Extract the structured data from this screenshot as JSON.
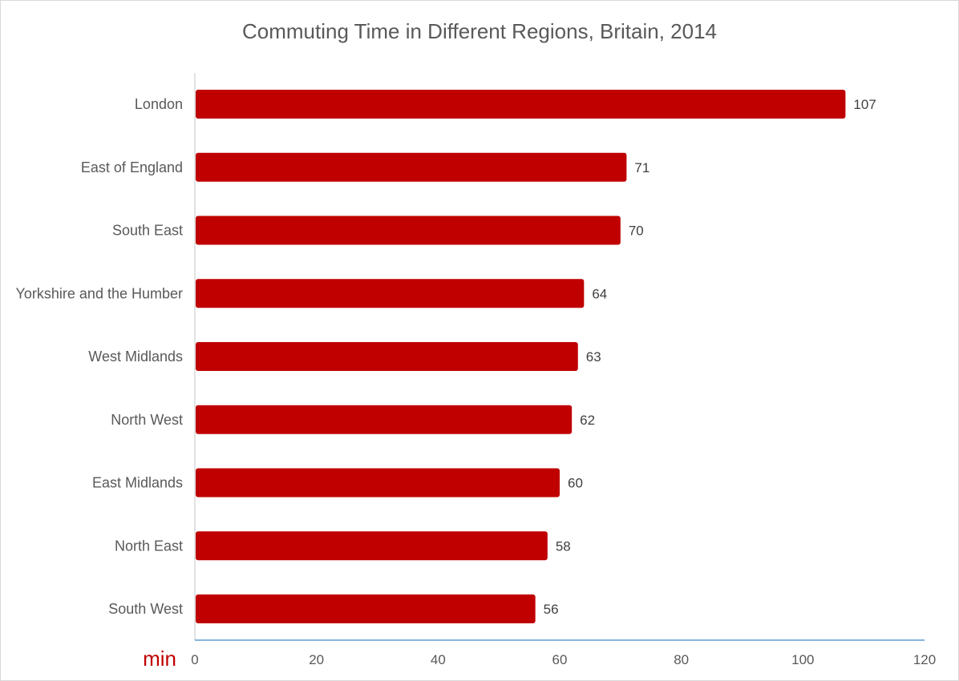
{
  "chart_data": {
    "type": "bar",
    "orientation": "horizontal",
    "title": "Commuting Time in Different Regions, Britain, 2014",
    "xlabel": "min",
    "ylabel": "",
    "categories": [
      "London",
      "East of England",
      "South East",
      "Yorkshire and the Humber",
      "West Midlands",
      "North West",
      "East Midlands",
      "North East",
      "South West"
    ],
    "values": [
      107,
      71,
      70,
      64,
      63,
      62,
      60,
      58,
      56
    ],
    "xlim": [
      0,
      120
    ],
    "xticks": [
      0,
      20,
      40,
      60,
      80,
      100,
      120
    ],
    "grid": false,
    "legend": "none",
    "data_labels": true
  },
  "colors": {
    "bar": "#c00000",
    "category_axis": "#d9d9d9",
    "value_axis": "#5b9bd5",
    "unit_label": "#c00000"
  }
}
